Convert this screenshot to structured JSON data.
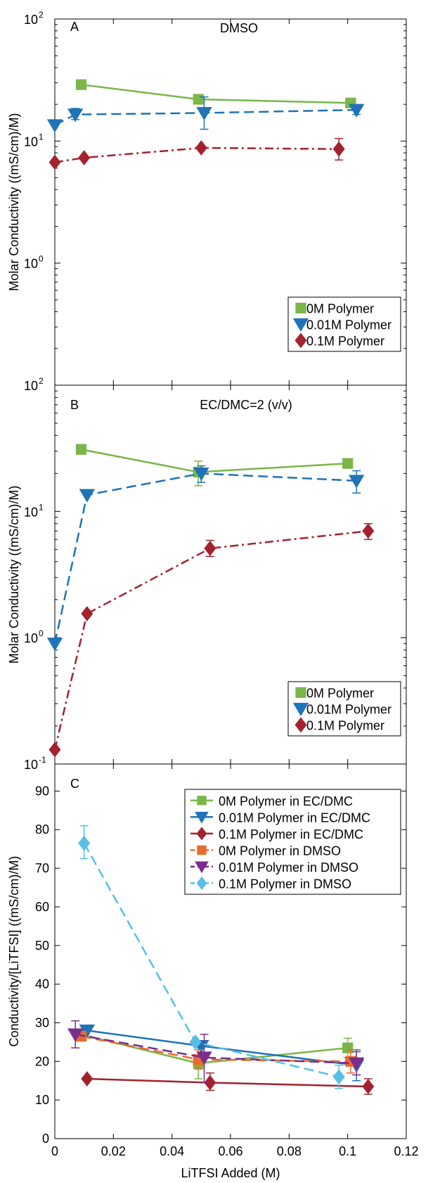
{
  "chart_data": [
    {
      "panel_letter": "A",
      "type": "line",
      "title": "DMSO",
      "ylabel": "Molar Conductivity ((mS/cm)/M)",
      "yscale": "log",
      "xlim": [
        0,
        0.12
      ],
      "ylim": [
        0.1,
        100
      ],
      "x_ticks": [
        0,
        0.02,
        0.04,
        0.06,
        0.08,
        0.1,
        0.12
      ],
      "y_tick_labels": [
        {
          "base": "10",
          "exp": "2",
          "value": 100
        },
        {
          "base": "10",
          "exp": "1",
          "value": 10
        },
        {
          "base": "10",
          "exp": "0",
          "value": 1
        }
      ],
      "legend_position": "bottom-right",
      "series": [
        {
          "name": "0M Polymer",
          "color": "#7ab648",
          "marker": "square",
          "dash": "solid",
          "x": [
            0.009,
            0.049,
            0.101
          ],
          "y": [
            29,
            22,
            20.5
          ],
          "err": [
            null,
            [
              21,
              23
            ],
            [
              19.5,
              21.5
            ]
          ]
        },
        {
          "name": "0.01M Polymer",
          "color": "#1f73b7",
          "marker": "triangle-down",
          "dash": "dashed",
          "x": [
            0,
            0.007,
            0.051,
            0.103
          ],
          "y": [
            13.5,
            16.5,
            17,
            18
          ],
          "err": [
            null,
            [
              15,
              18.5
            ],
            [
              12.5,
              23
            ],
            [
              16.5,
              19.5
            ]
          ]
        },
        {
          "name": "0.1M Polymer",
          "color": "#a3222e",
          "marker": "diamond",
          "dash": "dashdot",
          "x": [
            0,
            0.01,
            0.05,
            0.097
          ],
          "y": [
            6.7,
            7.3,
            8.8,
            8.6
          ],
          "err": [
            null,
            null,
            null,
            [
              7,
              10.5
            ]
          ]
        }
      ]
    },
    {
      "panel_letter": "B",
      "type": "line",
      "title": "EC/DMC=2 (v/v)",
      "ylabel": "Molar Conductivity ((mS/cm)/M)",
      "yscale": "log",
      "xlim": [
        0,
        0.12
      ],
      "ylim": [
        0.1,
        100
      ],
      "x_ticks": [
        0,
        0.02,
        0.04,
        0.06,
        0.08,
        0.1,
        0.12
      ],
      "y_tick_labels": [
        {
          "base": "10",
          "exp": "2",
          "value": 100
        },
        {
          "base": "10",
          "exp": "1",
          "value": 10
        },
        {
          "base": "10",
          "exp": "0",
          "value": 1
        },
        {
          "base": "10",
          "exp": "-1",
          "value": 0.1
        }
      ],
      "legend_position": "bottom-right",
      "series": [
        {
          "name": "0M Polymer",
          "color": "#7ab648",
          "marker": "square",
          "dash": "solid",
          "x": [
            0.009,
            0.049,
            0.1
          ],
          "y": [
            31,
            20.5,
            24
          ],
          "err": [
            null,
            [
              16,
              25
            ],
            null
          ]
        },
        {
          "name": "0.01M Polymer",
          "color": "#1f73b7",
          "marker": "triangle-down",
          "dash": "dashed",
          "x": [
            0,
            0.011,
            0.05,
            0.103
          ],
          "y": [
            0.9,
            13.5,
            20,
            17.5
          ],
          "err": [
            null,
            null,
            [
              17,
              23
            ],
            [
              14,
              21
            ]
          ]
        },
        {
          "name": "0.1M Polymer",
          "color": "#a3222e",
          "marker": "diamond",
          "dash": "dashdot",
          "x": [
            0,
            0.011,
            0.053,
            0.107
          ],
          "y": [
            0.13,
            1.55,
            5.1,
            7
          ],
          "err": [
            null,
            null,
            [
              4.4,
              5.9
            ],
            [
              6,
              8
            ]
          ]
        }
      ]
    },
    {
      "panel_letter": "C",
      "type": "line",
      "title": "",
      "xlabel": "LiTFSI Added (M)",
      "ylabel": "Conductivity/[LiTFSI] ((mS/cm)/M)",
      "yscale": "linear",
      "xlim": [
        0,
        0.12
      ],
      "ylim": [
        0,
        97
      ],
      "x_ticks": [
        0,
        0.02,
        0.04,
        0.06,
        0.08,
        0.1,
        0.12
      ],
      "x_tick_labels": [
        "0",
        "0.02",
        "0.04",
        "0.06",
        "0.08",
        "0.1",
        "0.12"
      ],
      "y_ticks": [
        0,
        10,
        20,
        30,
        40,
        50,
        60,
        70,
        80,
        90
      ],
      "y_tick_labels": [
        "0",
        "10",
        "20",
        "30",
        "40",
        "50",
        "60",
        "70",
        "80",
        "90"
      ],
      "legend_position": "top-right",
      "series": [
        {
          "name": "0M Polymer in EC/DMC",
          "color": "#7ab648",
          "marker": "square",
          "dash": "solid",
          "x": [
            0.009,
            0.049,
            0.1
          ],
          "y": [
            27,
            19.5,
            23.5
          ],
          "err": [
            null,
            [
              15.5,
              23.5
            ],
            [
              21,
              26
            ]
          ]
        },
        {
          "name": "0.01M Polymer in EC/DMC",
          "color": "#1f73b7",
          "marker": "triangle-down",
          "dash": "solid",
          "x": [
            0.011,
            0.05,
            0.103
          ],
          "y": [
            28,
            24,
            19
          ],
          "err": [
            null,
            null,
            [
              15,
              23
            ]
          ]
        },
        {
          "name": "0.1M Polymer in EC/DMC",
          "color": "#a3222e",
          "marker": "diamond",
          "dash": "solid",
          "x": [
            0.011,
            0.053,
            0.107
          ],
          "y": [
            15.5,
            14.5,
            13.5
          ],
          "err": [
            null,
            [
              12.5,
              17
            ],
            [
              11.5,
              15.5
            ]
          ]
        },
        {
          "name": "0M Polymer in DMSO",
          "color": "#e86a2b",
          "marker": "square",
          "dash": "dashed",
          "x": [
            0.009,
            0.049,
            0.101
          ],
          "y": [
            26.5,
            20.5,
            20
          ],
          "err": [
            null,
            [
              18,
              23
            ],
            [
              17,
              23
            ]
          ]
        },
        {
          "name": "0.01M Polymer in DMSO",
          "color": "#7b2d8e",
          "marker": "triangle-down",
          "dash": "dashed",
          "x": [
            0.007,
            0.051,
            0.103
          ],
          "y": [
            27,
            21,
            19.5
          ],
          "err": [
            [
              23.5,
              30.5
            ],
            [
              14.5,
              27
            ],
            [
              16.5,
              22.5
            ]
          ]
        },
        {
          "name": "0.1M Polymer in DMSO",
          "color": "#56bfe8",
          "marker": "diamond",
          "dash": "dashed",
          "x": [
            0.01,
            0.048,
            0.097
          ],
          "y": [
            76.5,
            25,
            16
          ],
          "err": [
            [
              72.5,
              81
            ],
            null,
            [
              13,
              19
            ]
          ]
        }
      ]
    }
  ]
}
